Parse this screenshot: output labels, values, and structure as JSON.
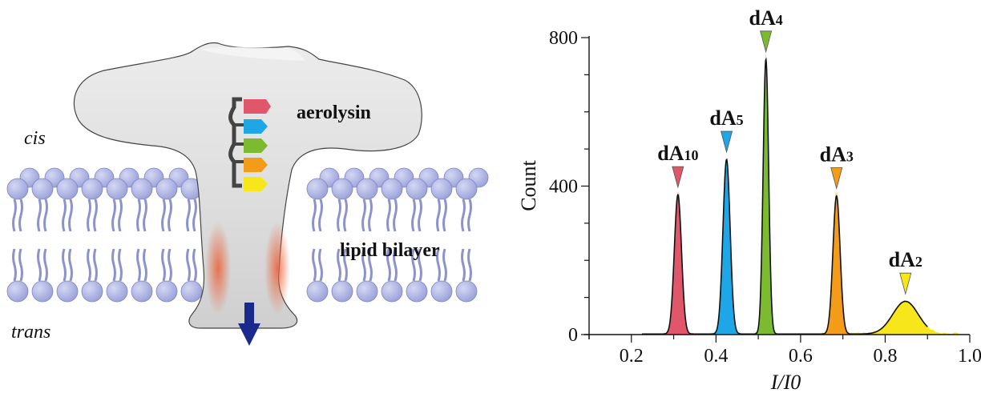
{
  "diagram": {
    "labels": {
      "cis": "cis",
      "trans": "trans",
      "aerolysin": "aerolysin",
      "lipid_bilayer": "lipid bilayer"
    },
    "tag_colors": [
      "#e0566b",
      "#1ea6e6",
      "#7cbb2f",
      "#f39c1a",
      "#f7e619"
    ],
    "colors": {
      "lipid_head": "#a9b0e0",
      "lipid_head_stroke": "#7f86c4",
      "lipid_tail": "#8c93cc",
      "pore_fill": "#e4e4e4",
      "pore_stroke": "#444444",
      "flow_arrow": "#1a2a8c",
      "backbone": "#444444"
    },
    "icons": [
      "down-arrow-icon"
    ]
  },
  "chart_data": {
    "type": "histogram",
    "xlabel": "I/I0",
    "ylabel": "Count",
    "xlim": [
      0.1,
      1.0
    ],
    "ylim": [
      0,
      800
    ],
    "xticks": [
      "0.2",
      "0.4",
      "0.6",
      "0.8",
      "1.0"
    ],
    "yticks": [
      "0",
      "400",
      "800"
    ],
    "peaks": [
      {
        "label_main": "dA",
        "label_sub": "10",
        "center": 0.31,
        "height": 375,
        "sigma": 0.0085,
        "color": "#e0566b"
      },
      {
        "label_main": "dA",
        "label_sub": "5",
        "center": 0.425,
        "height": 470,
        "sigma": 0.0085,
        "color": "#1ea6e6"
      },
      {
        "label_main": "dA",
        "label_sub": "4",
        "center": 0.518,
        "height": 740,
        "sigma": 0.0065,
        "color": "#7cbb2f"
      },
      {
        "label_main": "dA",
        "label_sub": "3",
        "center": 0.685,
        "height": 372,
        "sigma": 0.0085,
        "color": "#f39c1a"
      },
      {
        "label_main": "dA",
        "label_sub": "2",
        "center": 0.848,
        "height": 88,
        "sigma": 0.03,
        "color": "#f7e619"
      }
    ],
    "fit_color": "#111111"
  }
}
